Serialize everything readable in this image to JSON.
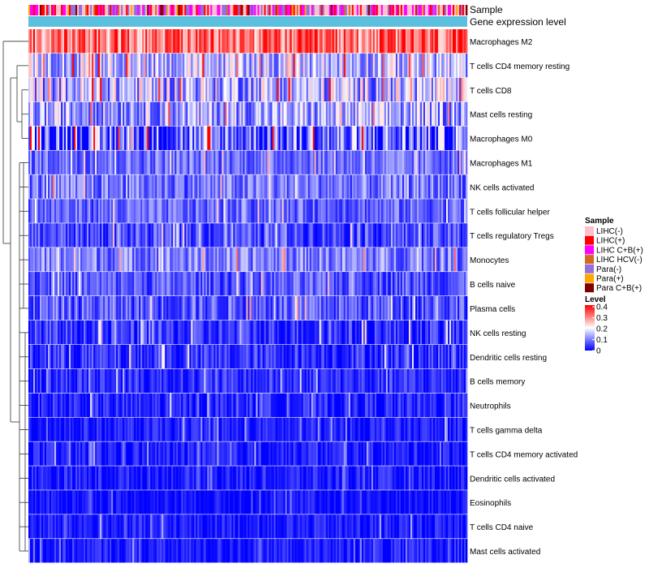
{
  "chart_data": {
    "type": "heatmap",
    "title": "",
    "annotation_tracks": [
      "Sample",
      "Gene expression level"
    ],
    "rows": [
      {
        "label": "Macrophages M2",
        "mean": 0.28,
        "spread": 0.1
      },
      {
        "label": "T cells CD4 memory resting",
        "mean": 0.12,
        "spread": 0.1
      },
      {
        "label": "T cells CD8",
        "mean": 0.11,
        "spread": 0.12
      },
      {
        "label": "Mast cells resting",
        "mean": 0.1,
        "spread": 0.1
      },
      {
        "label": "Macrophages M0",
        "mean": 0.04,
        "spread": 0.14
      },
      {
        "label": "Macrophages M1",
        "mean": 0.07,
        "spread": 0.06
      },
      {
        "label": "NK cells activated",
        "mean": 0.07,
        "spread": 0.07
      },
      {
        "label": "T cells follicular helper",
        "mean": 0.06,
        "spread": 0.06
      },
      {
        "label": "T cells regulatory  Tregs",
        "mean": 0.04,
        "spread": 0.06
      },
      {
        "label": "Monocytes",
        "mean": 0.08,
        "spread": 0.07
      },
      {
        "label": "B cells naive",
        "mean": 0.05,
        "spread": 0.06
      },
      {
        "label": "Plasma cells",
        "mean": 0.05,
        "spread": 0.07
      },
      {
        "label": "NK cells resting",
        "mean": 0.02,
        "spread": 0.06
      },
      {
        "label": "Dendritic cells resting",
        "mean": 0.02,
        "spread": 0.06
      },
      {
        "label": "B cells memory",
        "mean": 0.02,
        "spread": 0.05
      },
      {
        "label": "Neutrophils",
        "mean": 0.01,
        "spread": 0.05
      },
      {
        "label": "T cells gamma delta",
        "mean": 0.01,
        "spread": 0.04
      },
      {
        "label": "T cells CD4 memory activated",
        "mean": 0.01,
        "spread": 0.04
      },
      {
        "label": "Dendritic cells activated",
        "mean": 0.01,
        "spread": 0.04
      },
      {
        "label": "Eosinophils",
        "mean": 0.005,
        "spread": 0.03
      },
      {
        "label": "T cells CD4 naive",
        "mean": 0.01,
        "spread": 0.04
      },
      {
        "label": "Mast cells activated",
        "mean": 0.01,
        "spread": 0.04
      }
    ],
    "legend_sample": {
      "title": "Sample",
      "items": [
        {
          "label": "LIHC(-)",
          "color": "#ffc0cb"
        },
        {
          "label": "LIHC(+)",
          "color": "#ff0000"
        },
        {
          "label": "LIHC C+B(+)",
          "color": "#ff00ff"
        },
        {
          "label": "LIHC HCV(-)",
          "color": "#d2691e"
        },
        {
          "label": "Para(-)",
          "color": "#9370db"
        },
        {
          "label": "Para(+)",
          "color": "#ffa500"
        },
        {
          "label": "Para C+B(+)",
          "color": "#800000"
        }
      ]
    },
    "legend_level": {
      "title": "Level",
      "range": [
        0,
        0.4
      ],
      "ticks": [
        "0.4",
        "0.3",
        "0.2",
        "0.1",
        "0"
      ]
    },
    "colors": {
      "low": "#0000ff",
      "mid": "#ffffff",
      "high": "#ff0000",
      "expression_track": "#5bc0de"
    }
  }
}
